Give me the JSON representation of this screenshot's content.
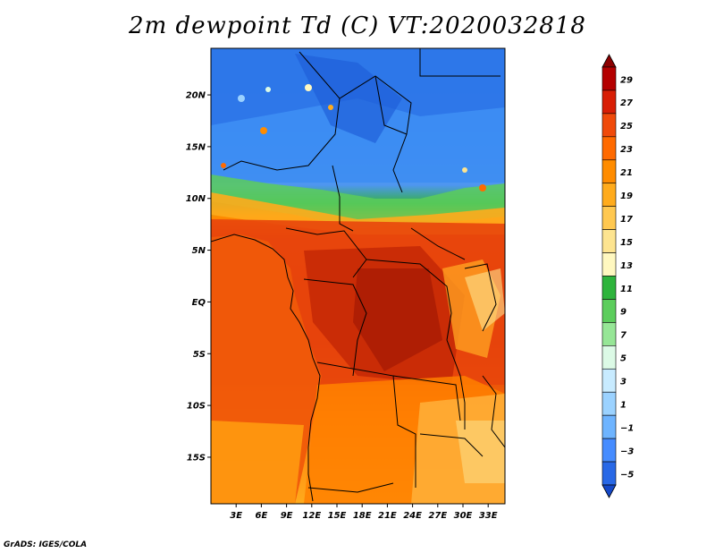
{
  "title": "2m dewpoint Td (C) VT:2020032818",
  "credit": "GrADS: IGES/COLA",
  "map": {
    "lon_range": [
      0,
      35
    ],
    "lat_range": [
      -19.5,
      24.5
    ],
    "lat_ticks": [
      "20N",
      "15N",
      "10N",
      "5N",
      "EQ",
      "5S",
      "10S",
      "15S"
    ],
    "lon_ticks": [
      "3E",
      "6E",
      "9E",
      "12E",
      "15E",
      "18E",
      "21E",
      "24E",
      "27E",
      "30E",
      "33E"
    ]
  },
  "colorbar": {
    "labels": [
      "29",
      "27",
      "25",
      "23",
      "21",
      "19",
      "17",
      "15",
      "13",
      "11",
      "9",
      "7",
      "5",
      "3",
      "1",
      "−1",
      "−3",
      "−5"
    ],
    "colors": [
      "#8b0000",
      "#b40000",
      "#d81e05",
      "#f04a0a",
      "#ff6a00",
      "#ff8c00",
      "#ffab1c",
      "#ffc850",
      "#fde490",
      "#fff8c0",
      "#2eb43c",
      "#5ccd5c",
      "#96e696",
      "#dcfae6",
      "#c8ebff",
      "#9bd2ff",
      "#6eb4ff",
      "#468cff",
      "#2868e6",
      "#1448c8"
    ]
  }
}
